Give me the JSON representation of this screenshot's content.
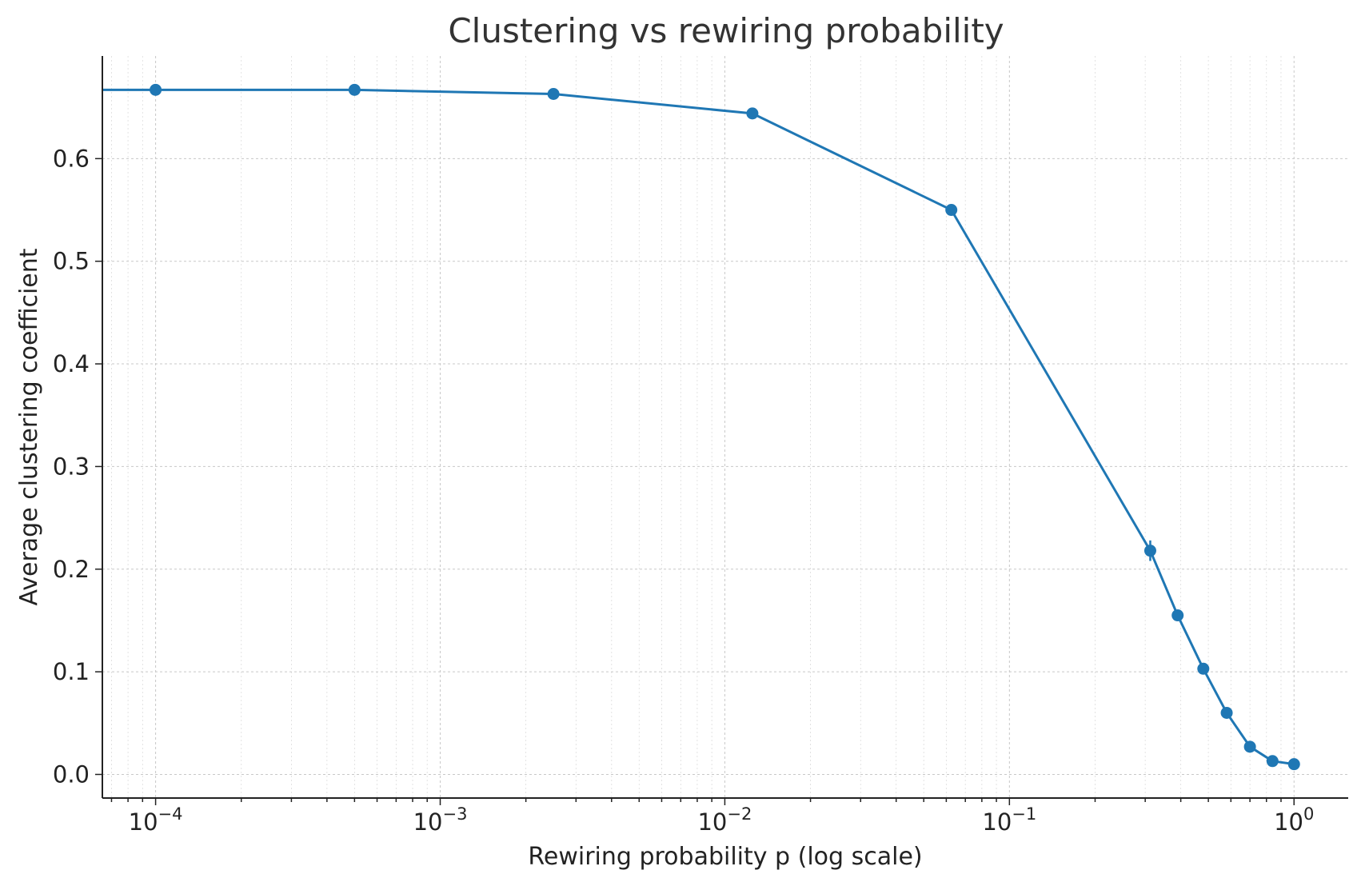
{
  "chart_data": {
    "type": "line",
    "title": "Clustering vs rewiring probability",
    "xlabel": "Rewiring probability p (log scale)",
    "ylabel": "Average clustering coefficient",
    "xscale": "log",
    "xlim": [
      6.5e-05,
      1.55
    ],
    "ylim": [
      -0.023,
      0.7
    ],
    "grid": true,
    "x_ticks": [
      {
        "value": 0.0001,
        "base": "10",
        "exp": "−4"
      },
      {
        "value": 0.001,
        "base": "10",
        "exp": "−3"
      },
      {
        "value": 0.01,
        "base": "10",
        "exp": "−2"
      },
      {
        "value": 0.1,
        "base": "10",
        "exp": "−1"
      },
      {
        "value": 1,
        "base": "10",
        "exp": "0"
      }
    ],
    "y_ticks": [
      0.0,
      0.1,
      0.2,
      0.3,
      0.4,
      0.5,
      0.6
    ],
    "y_tick_labels": [
      "0.0",
      "0.1",
      "0.2",
      "0.3",
      "0.4",
      "0.5",
      "0.6"
    ],
    "series": [
      {
        "color": "#1f77b4",
        "marker": "circle",
        "x": [
          0.0,
          0.0001,
          0.0005,
          0.0025,
          0.0125,
          0.0625,
          0.3125,
          0.39,
          0.48,
          0.58,
          0.7,
          0.84,
          1.0
        ],
        "y": [
          0.667,
          0.667,
          0.667,
          0.663,
          0.644,
          0.55,
          0.218,
          0.155,
          0.103,
          0.06,
          0.027,
          0.013,
          0.01
        ],
        "yerr": [
          0.001,
          0.001,
          0.001,
          0.002,
          0.002,
          0.003,
          0.01,
          0.004,
          0.003,
          0.002,
          0.002,
          0.001,
          0.001
        ]
      }
    ]
  }
}
